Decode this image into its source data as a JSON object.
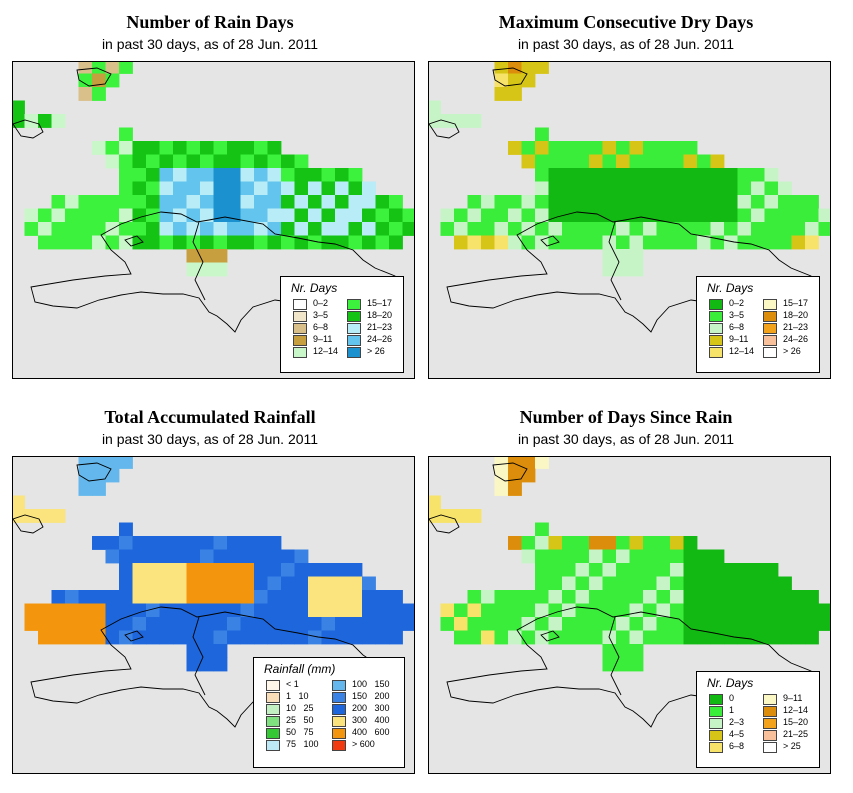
{
  "background": "#e5e5e5",
  "panels": [
    {
      "title": "Number of Rain Days",
      "subtitle": "in past 30 days, as of  28 Jun. 2011",
      "legend": {
        "title": "Nr. Days",
        "items": [
          {
            "label": "0–2",
            "color": "#ffffff"
          },
          {
            "label": "3–5",
            "color": "#f1e6c9"
          },
          {
            "label": "6–8",
            "color": "#d9bf8a"
          },
          {
            "label": "9–11",
            "color": "#c79f3e"
          },
          {
            "label": "12–14",
            "color": "#c9f7c9"
          },
          {
            "label": "15–17",
            "color": "#3df23d"
          },
          {
            "label": "18–20",
            "color": "#14c314"
          },
          {
            "label": "21–23",
            "color": "#b8ecf7"
          },
          {
            "label": "24–26",
            "color": "#63c4ee"
          },
          {
            "label": "> 26",
            "color": "#1b92cf"
          }
        ]
      }
    },
    {
      "title": "Maximum Consecutive Dry Days",
      "subtitle": "in past 30 days, as of  28 Jun. 2011",
      "legend": {
        "title": "Nr. Days",
        "items": [
          {
            "label": "0–2",
            "color": "#12b912"
          },
          {
            "label": "3–5",
            "color": "#3bed3b"
          },
          {
            "label": "6–8",
            "color": "#c7f4c7"
          },
          {
            "label": "9–11",
            "color": "#d6c516"
          },
          {
            "label": "12–14",
            "color": "#f7e36a"
          },
          {
            "label": "15–17",
            "color": "#fbf7c4"
          },
          {
            "label": "18–20",
            "color": "#dc8d0b"
          },
          {
            "label": "21–23",
            "color": "#f3a21b"
          },
          {
            "label": "24–26",
            "color": "#f9c09c"
          },
          {
            "label": "> 26",
            "color": "#ffffff"
          }
        ]
      }
    },
    {
      "title": "Total Accumulated Rainfall",
      "subtitle": "in past 30 days, as of  28 Jun. 2011",
      "legend": {
        "title": "Rainfall (mm)",
        "items": [
          {
            "label": "< 1",
            "color": "#fff7ea"
          },
          {
            "label": "1   10",
            "color": "#f9ddb8"
          },
          {
            "label": "10   25",
            "color": "#c3f0c3"
          },
          {
            "label": "25   50",
            "color": "#7ee07e"
          },
          {
            "label": "50   75",
            "color": "#34c934"
          },
          {
            "label": "75   100",
            "color": "#bde9f7"
          },
          {
            "label": "100   150",
            "color": "#63b7ec"
          },
          {
            "label": "150   200",
            "color": "#3a82e3"
          },
          {
            "label": "200   300",
            "color": "#1d66dc"
          },
          {
            "label": "300   400",
            "color": "#fbe47e"
          },
          {
            "label": "400   600",
            "color": "#f3960d"
          },
          {
            "label": "> 600",
            "color": "#f23a10"
          }
        ]
      }
    },
    {
      "title": "Number of Days Since Rain",
      "subtitle": "in past 30 days, as of  28 Jun. 2011",
      "legend": {
        "title": "Nr. Days",
        "items": [
          {
            "label": "0",
            "color": "#12b912"
          },
          {
            "label": "1",
            "color": "#3bed3b"
          },
          {
            "label": "2–3",
            "color": "#c7f4c7"
          },
          {
            "label": "4–5",
            "color": "#d6c516"
          },
          {
            "label": "6–8",
            "color": "#f7e36a"
          },
          {
            "label": "9–11",
            "color": "#fbf7c4"
          },
          {
            "label": "12–14",
            "color": "#dc8d0b"
          },
          {
            "label": "15–20",
            "color": "#f3a21b"
          },
          {
            "label": "21–25",
            "color": "#f9c09c"
          },
          {
            "label": "> 25",
            "color": "#ffffff"
          }
        ]
      }
    }
  ]
}
